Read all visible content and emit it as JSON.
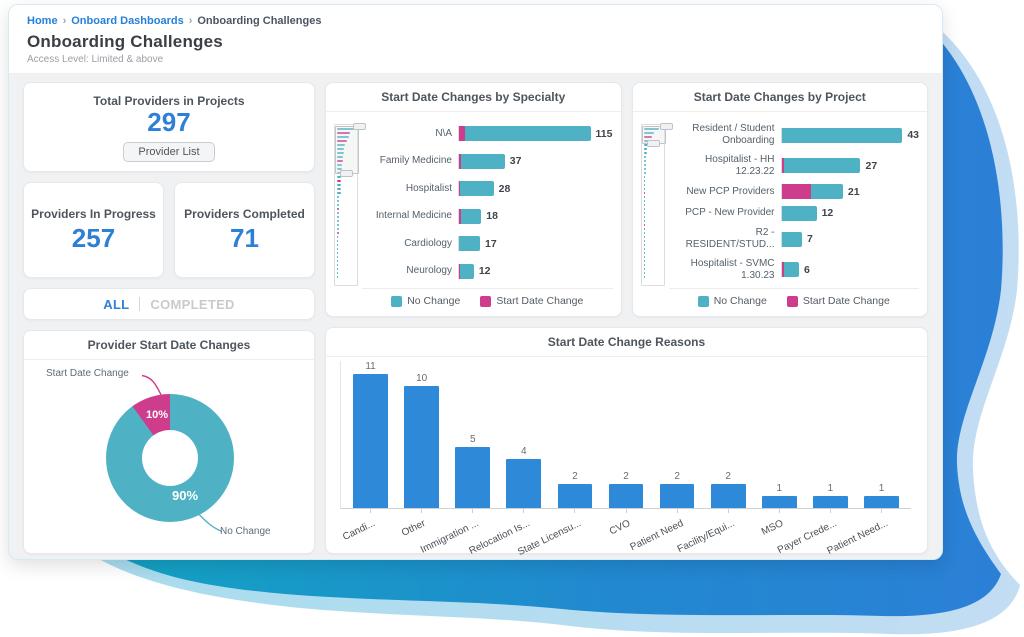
{
  "breadcrumb": {
    "separator": "›",
    "items": [
      {
        "label": "Home",
        "link": true
      },
      {
        "label": "Onboard Dashboards",
        "link": true
      },
      {
        "label": "Onboarding Challenges",
        "link": false
      }
    ]
  },
  "header": {
    "title": "Onboarding Challenges",
    "subtitle": "Access Level: Limited & above"
  },
  "colors": {
    "teal": "#4FB2C4",
    "pink": "#CE3D8C",
    "blue": "#2E89D8",
    "accent_text_blue": "#2E7FD6",
    "wave_teal": "#14A0C4",
    "wave_blue": "#2B80D6",
    "wave_light_left": "#A9DCEE",
    "wave_light_right": "#C3DDF3"
  },
  "kpis": {
    "total": {
      "title": "Total Providers in Projects",
      "value": "297",
      "button": "Provider List"
    },
    "in_progress": {
      "title": "Providers In Progress",
      "value": "257"
    },
    "completed": {
      "title": "Providers Completed",
      "value": "71"
    }
  },
  "tabs": [
    {
      "label": "ALL",
      "active": true
    },
    {
      "label": "COMPLETED",
      "active": false
    }
  ],
  "chart_data": [
    {
      "id": "donut",
      "type": "pie",
      "title": "Provider Start Date Changes",
      "slices": [
        {
          "label": "No Change",
          "pct": 90,
          "pct_label": "90%",
          "color": "teal"
        },
        {
          "label": "Start Date Change",
          "pct": 10,
          "pct_label": "10%",
          "color": "pink"
        }
      ],
      "legend_position": "callout-labels"
    },
    {
      "id": "specialty",
      "type": "bar",
      "orientation": "horizontal",
      "title": "Start Date Changes by Specialty",
      "categories": [
        "N\\A",
        "Family Medicine",
        "Hospitalist",
        "Internal Medicine",
        "Cardiology",
        "Neurology"
      ],
      "series": [
        {
          "name": "Start Date Change",
          "color": "pink",
          "values": [
            5,
            2,
            1,
            2,
            0,
            1
          ]
        },
        {
          "name": "No Change",
          "color": "teal",
          "values": [
            110,
            35,
            27,
            16,
            17,
            11
          ]
        }
      ],
      "totals": [
        115,
        37,
        28,
        18,
        17,
        12
      ],
      "xmax": 124,
      "label_width": 96,
      "legend": [
        {
          "label": "No Change",
          "color": "teal"
        },
        {
          "label": "Start Date Change",
          "color": "pink"
        }
      ],
      "navigator": {
        "selection_h": 48,
        "widths": [
          14,
          11,
          10,
          8,
          7,
          6,
          6,
          5,
          5,
          4,
          4,
          4,
          3,
          3,
          3,
          3,
          3,
          2,
          2,
          2,
          2,
          2,
          2,
          2,
          2,
          2,
          2,
          1,
          1,
          1,
          1,
          1,
          1,
          1,
          1,
          1,
          1,
          1
        ],
        "pink_idx": [
          1,
          3,
          8,
          13,
          20,
          26
        ]
      }
    },
    {
      "id": "project",
      "type": "bar",
      "orientation": "horizontal",
      "title": "Start Date Changes by Project",
      "categories": [
        "Resident / Student\nOnboarding",
        "Hospitalist - HH\n12.23.22",
        "New PCP Providers",
        "PCP - New Provider",
        "R2 - RESIDENT/STUD...",
        "Hospitalist - SVMC\n1.30.23"
      ],
      "series": [
        {
          "name": "Start Date Change",
          "color": "pink",
          "values": [
            0,
            1,
            10,
            0,
            0,
            1
          ]
        },
        {
          "name": "No Change",
          "color": "teal",
          "values": [
            43,
            26,
            11,
            12,
            7,
            5
          ]
        }
      ],
      "totals": [
        43,
        27,
        21,
        12,
        7,
        6
      ],
      "xmax": 47,
      "label_width": 112,
      "legend": [
        {
          "label": "No Change",
          "color": "teal"
        },
        {
          "label": "Start Date Change",
          "color": "pink"
        }
      ],
      "navigator": {
        "selection_h": 18,
        "widths": [
          13,
          9,
          7,
          5,
          4,
          3,
          3,
          2,
          2,
          2,
          2,
          2,
          1,
          1,
          1,
          1,
          1,
          1,
          1,
          1,
          1,
          1,
          1,
          1,
          1,
          1,
          1,
          1,
          1,
          1,
          1,
          1,
          1,
          1,
          1,
          1,
          1,
          1
        ],
        "pink_idx": [
          2,
          16,
          24
        ]
      }
    },
    {
      "id": "reasons",
      "type": "bar",
      "orientation": "vertical",
      "title": "Start Date Change Reasons",
      "categories": [
        "Candi...",
        "Other",
        "Immigration ...",
        "Relocation Is...",
        "State Licensu...",
        "CVO",
        "Patient Need",
        "Facility/Equi...",
        "MSO",
        "Payer Crede...",
        "Patient Need..."
      ],
      "values": [
        11,
        10,
        5,
        4,
        2,
        2,
        2,
        2,
        1,
        1,
        1
      ],
      "ylim": [
        0,
        12
      ],
      "bar_color": "blue",
      "grid": false
    }
  ]
}
